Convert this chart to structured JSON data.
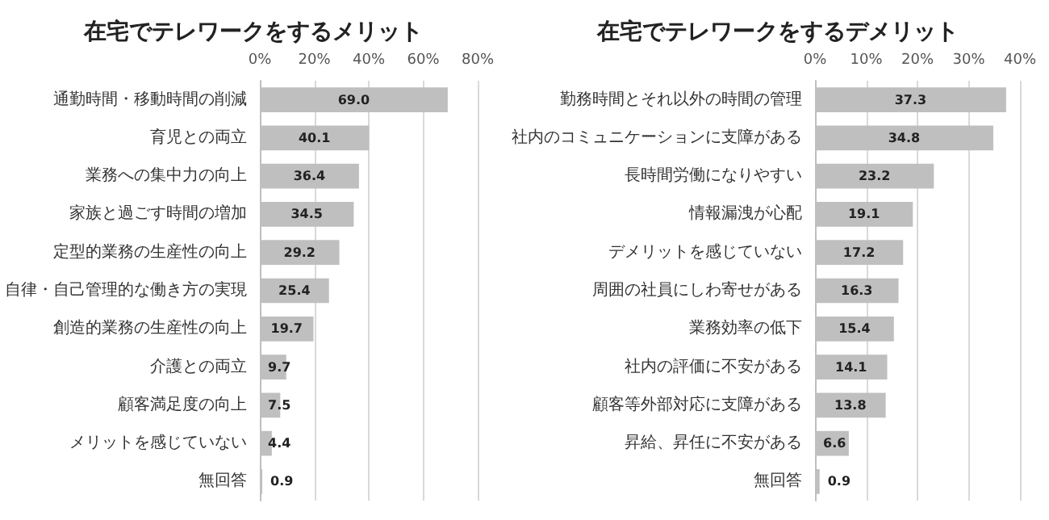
{
  "chart_data": [
    {
      "type": "bar",
      "orientation": "horizontal",
      "title": "在宅でテレワークをするメリット",
      "categories": [
        "通勤時間・移動時間の削減",
        "育児との両立",
        "業務への集中力の向上",
        "家族と過ごす時間の増加",
        "定型的業務の生産性の向上",
        "自律・自己管理的な働き方の実現",
        "創造的業務の生産性の向上",
        "介護との両立",
        "顧客満足度の向上",
        "メリットを感じていない",
        "無回答"
      ],
      "values": [
        69.0,
        40.1,
        36.4,
        34.5,
        29.2,
        25.4,
        19.7,
        9.7,
        7.5,
        4.4,
        0.9
      ],
      "color": "#bfbfbf",
      "xlim": [
        0,
        80
      ],
      "xticks": [
        {
          "value": 0,
          "label": "0%"
        },
        {
          "value": 20,
          "label": "20%"
        },
        {
          "value": 40,
          "label": "40%"
        },
        {
          "value": 60,
          "label": "60%"
        },
        {
          "value": 80,
          "label": "80%"
        }
      ],
      "value_labels": [
        "69.0",
        "40.1",
        "36.4",
        "34.5",
        "29.2",
        "25.4",
        "19.7",
        "9.7",
        "7.5",
        "4.4",
        "0.9"
      ],
      "grid": "x"
    },
    {
      "type": "bar",
      "orientation": "horizontal",
      "title": "在宅でテレワークをするデメリット",
      "categories": [
        "勤務時間とそれ以外の時間の管理",
        "社内のコミュニケーションに支障がある",
        "長時間労働になりやすい",
        "情報漏洩が心配",
        "デメリットを感じていない",
        "周囲の社員にしわ寄せがある",
        "業務効率の低下",
        "社内の評価に不安がある",
        "顧客等外部対応に支障がある",
        "昇給、昇任に不安がある",
        "無回答"
      ],
      "values": [
        37.3,
        34.8,
        23.2,
        19.1,
        17.2,
        16.3,
        15.4,
        14.1,
        13.8,
        6.6,
        0.9
      ],
      "color": "#bfbfbf",
      "xlim": [
        0,
        40
      ],
      "xticks": [
        {
          "value": 0,
          "label": "0%"
        },
        {
          "value": 10,
          "label": "10%"
        },
        {
          "value": 20,
          "label": "20%"
        },
        {
          "value": 30,
          "label": "30%"
        },
        {
          "value": 40,
          "label": "40%"
        }
      ],
      "value_labels": [
        "37.3",
        "34.8",
        "23.2",
        "19.1",
        "17.2",
        "16.3",
        "15.4",
        "14.1",
        "13.8",
        "6.6",
        "0.9"
      ],
      "grid": "x"
    }
  ]
}
